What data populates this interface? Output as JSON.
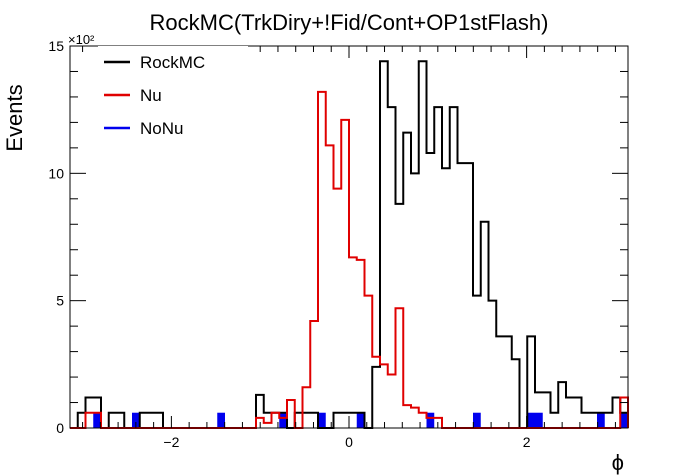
{
  "chart_data": {
    "type": "histogram",
    "title": "RockMC(TrkDiry+!Fid/Cont+OP1stFlash)",
    "xlabel": "ϕ",
    "ylabel": "Events",
    "y_scale_label": "×10²",
    "xlim": [
      -3.14159,
      3.14159
    ],
    "ylim": [
      0,
      15
    ],
    "x_ticks": [
      -2,
      0,
      2
    ],
    "y_ticks": [
      0,
      5,
      10,
      15
    ],
    "bins": 72,
    "grid": false,
    "legend_position": "top-left",
    "series": [
      {
        "name": "RockMC",
        "color": "#000000",
        "style": "step",
        "values": [
          0,
          0.6,
          1.2,
          1.2,
          0,
          0.6,
          0.6,
          0,
          0,
          0.6,
          0.6,
          0.6,
          0,
          0,
          0,
          0,
          0,
          0,
          0,
          0,
          0,
          0,
          0,
          0,
          1.3,
          0.6,
          0.6,
          0.6,
          0,
          0.6,
          0.6,
          0.6,
          0,
          0,
          0.6,
          0.6,
          0.6,
          0.6,
          0,
          2.4,
          14.4,
          12.6,
          8.8,
          11.6,
          10,
          14.4,
          10.8,
          12.6,
          10.2,
          12.6,
          10.4,
          10.4,
          5.2,
          8.1,
          5,
          3.6,
          3.6,
          2.7,
          0,
          3.6,
          1.4,
          1.4,
          0.6,
          1.8,
          1.2,
          1.2,
          0.6,
          0.6,
          0.6,
          0.6,
          1.2,
          0.6
        ],
        "values_x100": true
      },
      {
        "name": "Nu",
        "color": "#e00000",
        "style": "step",
        "values": [
          0,
          0,
          0.6,
          0.6,
          0,
          0,
          0,
          0,
          0,
          0,
          0,
          0,
          0,
          0,
          0,
          0,
          0,
          0,
          0,
          0,
          0,
          0,
          0,
          0,
          0.4,
          0.2,
          0.6,
          0.4,
          1.1,
          0,
          1.6,
          4.2,
          13.2,
          11.1,
          9.4,
          12.1,
          6.7,
          6.6,
          5.2,
          2.8,
          2.5,
          2.1,
          4.7,
          0.9,
          0.8,
          0.6,
          0.4,
          0.4,
          0,
          0,
          0,
          0,
          0,
          0,
          0,
          0,
          0,
          0,
          0,
          0,
          0,
          0,
          0,
          0,
          0,
          0,
          0,
          0,
          0,
          0,
          0,
          1.2
        ],
        "values_x100": true
      },
      {
        "name": "NoNu",
        "color": "#0000ee",
        "style": "filled",
        "values": [
          0,
          0,
          0,
          0.6,
          0,
          0,
          0,
          0,
          0.6,
          0,
          0,
          0,
          0,
          0,
          0,
          0,
          0,
          0,
          0,
          0.6,
          0,
          0,
          0,
          0,
          0,
          0,
          0,
          0.6,
          0,
          0,
          0,
          0,
          0.6,
          0,
          0,
          0,
          0,
          0.6,
          0,
          0,
          0,
          0,
          0,
          0,
          0,
          0,
          0.6,
          0,
          0,
          0,
          0,
          0,
          0.6,
          0,
          0,
          0,
          0,
          0,
          0,
          0.6,
          0.6,
          0,
          0,
          0,
          0,
          0,
          0,
          0,
          0.6,
          0,
          0,
          0.6
        ],
        "values_x100": true
      }
    ]
  }
}
